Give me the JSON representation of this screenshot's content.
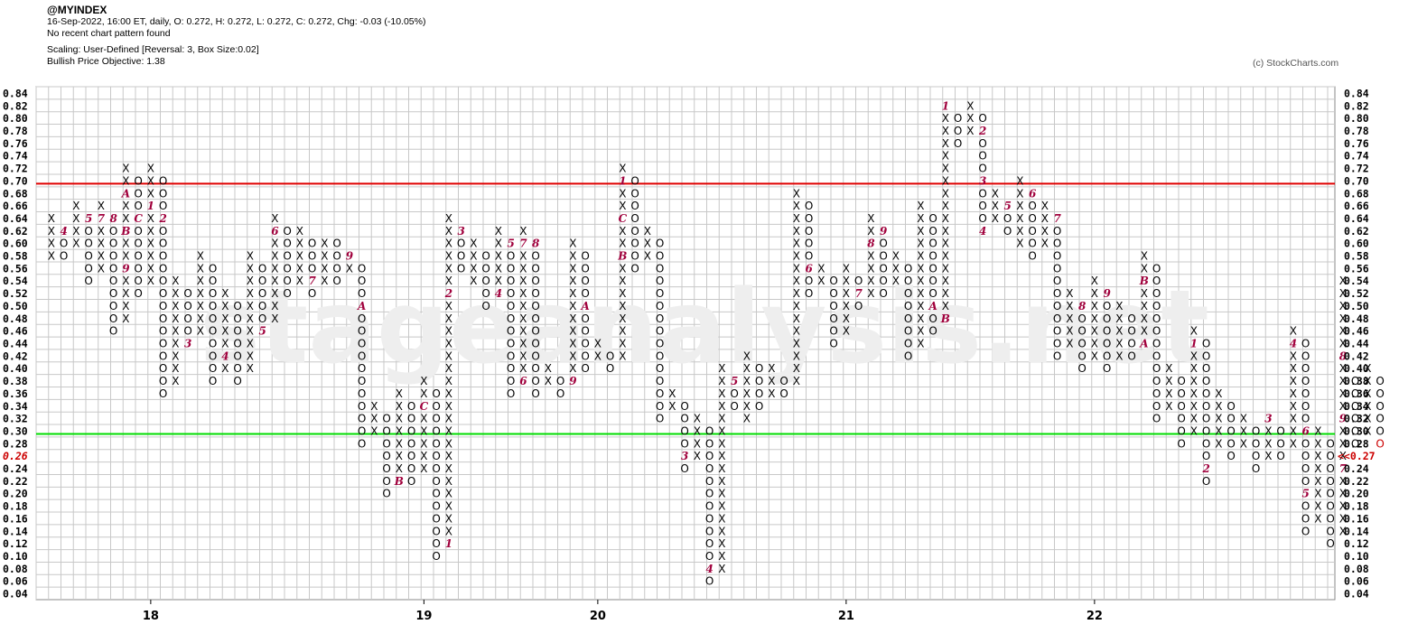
{
  "header": {
    "symbol": "@MYINDEX",
    "quote": "16-Sep-2022, 16:00 ET, daily, O: 0.272, H: 0.272, L: 0.272, C: 0.272, Chg: -0.03 (-10.05%)",
    "pattern": "No recent chart pattern found",
    "scaling": "Scaling: User-Defined [Reversal: 3, Box Size:0.02]",
    "objective": "Bullish Price Objective: 1.38"
  },
  "credit": "(c) StockCharts.com",
  "watermark": "stageanalysis.net",
  "colors": {
    "x": "#000000",
    "o": "#000000",
    "month": "#a0003c",
    "resistance": "#e00000",
    "support": "#00dd00",
    "grid": "#c8c8c8",
    "last": "#cc0000"
  },
  "chart_data": {
    "type": "point-and-figure",
    "box_size": 0.02,
    "reversal": 3,
    "ylim": [
      0.04,
      0.84
    ],
    "y_ticks": [
      "0.84",
      "0.82",
      "0.80",
      "0.78",
      "0.76",
      "0.74",
      "0.72",
      "0.70",
      "0.68",
      "0.66",
      "0.64",
      "0.62",
      "0.60",
      "0.58",
      "0.56",
      "0.54",
      "0.52",
      "0.50",
      "0.48",
      "0.46",
      "0.44",
      "0.42",
      "0.40",
      "0.38",
      "0.36",
      "0.34",
      "0.32",
      "0.30",
      "0.28",
      "0.26",
      "0.24",
      "0.22",
      "0.20",
      "0.18",
      "0.16",
      "0.14",
      "0.12",
      "0.10",
      "0.08",
      "0.06",
      "0.04"
    ],
    "left_marker": "0.26",
    "right_marker": "<<0.27",
    "resistance_line": 0.695,
    "support_line": 0.295,
    "year_labels": [
      {
        "label": "18",
        "col": 8
      },
      {
        "label": "19",
        "col": 30
      },
      {
        "label": "20",
        "col": 44
      },
      {
        "label": "21",
        "col": 64
      },
      {
        "label": "22",
        "col": 84
      }
    ],
    "columns": [
      {
        "t": "X",
        "lo": 0.58,
        "hi": 0.64
      },
      {
        "t": "O",
        "lo": 0.58,
        "hi": 0.62,
        "m": [
          [
            0.62,
            "4"
          ]
        ]
      },
      {
        "t": "X",
        "lo": 0.6,
        "hi": 0.66
      },
      {
        "t": "O",
        "lo": 0.54,
        "hi": 0.64,
        "m": [
          [
            0.64,
            "5"
          ]
        ]
      },
      {
        "t": "X",
        "lo": 0.56,
        "hi": 0.66,
        "m": [
          [
            0.64,
            "7"
          ]
        ]
      },
      {
        "t": "O",
        "lo": 0.46,
        "hi": 0.64,
        "m": [
          [
            0.64,
            "8"
          ]
        ]
      },
      {
        "t": "X",
        "lo": 0.48,
        "hi": 0.72,
        "m": [
          [
            0.56,
            "9"
          ],
          [
            0.62,
            "B"
          ],
          [
            0.68,
            "A"
          ]
        ]
      },
      {
        "t": "O",
        "lo": 0.52,
        "hi": 0.7,
        "m": [
          [
            0.64,
            "C"
          ]
        ]
      },
      {
        "t": "X",
        "lo": 0.54,
        "hi": 0.72,
        "m": [
          [
            0.66,
            "1"
          ]
        ]
      },
      {
        "t": "O",
        "lo": 0.36,
        "hi": 0.7,
        "m": [
          [
            0.64,
            "2"
          ]
        ]
      },
      {
        "t": "X",
        "lo": 0.38,
        "hi": 0.54
      },
      {
        "t": "O",
        "lo": 0.44,
        "hi": 0.52,
        "m": [
          [
            0.44,
            "3"
          ]
        ]
      },
      {
        "t": "X",
        "lo": 0.46,
        "hi": 0.58
      },
      {
        "t": "O",
        "lo": 0.38,
        "hi": 0.56
      },
      {
        "t": "X",
        "lo": 0.4,
        "hi": 0.52,
        "m": [
          [
            0.42,
            "4"
          ]
        ]
      },
      {
        "t": "O",
        "lo": 0.38,
        "hi": 0.5
      },
      {
        "t": "X",
        "lo": 0.4,
        "hi": 0.58
      },
      {
        "t": "O",
        "lo": 0.46,
        "hi": 0.56,
        "m": [
          [
            0.46,
            "5"
          ]
        ]
      },
      {
        "t": "X",
        "lo": 0.48,
        "hi": 0.64,
        "m": [
          [
            0.62,
            "6"
          ]
        ]
      },
      {
        "t": "O",
        "lo": 0.52,
        "hi": 0.62
      },
      {
        "t": "X",
        "lo": 0.54,
        "hi": 0.62
      },
      {
        "t": "O",
        "lo": 0.52,
        "hi": 0.6,
        "m": [
          [
            0.54,
            "7"
          ]
        ]
      },
      {
        "t": "X",
        "lo": 0.54,
        "hi": 0.6,
        "m": [
          [
            0.52,
            "8"
          ]
        ]
      },
      {
        "t": "O",
        "lo": 0.54,
        "hi": 0.6
      },
      {
        "t": "X",
        "lo": 0.56,
        "hi": 0.58,
        "m": [
          [
            0.58,
            "9"
          ]
        ]
      },
      {
        "t": "O",
        "lo": 0.28,
        "hi": 0.56,
        "m": [
          [
            0.5,
            "A"
          ]
        ]
      },
      {
        "t": "X",
        "lo": 0.3,
        "hi": 0.34
      },
      {
        "t": "O",
        "lo": 0.2,
        "hi": 0.32
      },
      {
        "t": "X",
        "lo": 0.22,
        "hi": 0.36,
        "m": [
          [
            0.22,
            "B"
          ]
        ]
      },
      {
        "t": "O",
        "lo": 0.22,
        "hi": 0.34
      },
      {
        "t": "X",
        "lo": 0.24,
        "hi": 0.38,
        "m": [
          [
            0.34,
            "C"
          ]
        ]
      },
      {
        "t": "O",
        "lo": 0.1,
        "hi": 0.36
      },
      {
        "t": "X",
        "lo": 0.12,
        "hi": 0.64,
        "m": [
          [
            0.12,
            "1"
          ],
          [
            0.52,
            "2"
          ]
        ]
      },
      {
        "t": "O",
        "lo": 0.56,
        "hi": 0.62,
        "m": [
          [
            0.62,
            "3"
          ]
        ]
      },
      {
        "t": "X",
        "lo": 0.54,
        "hi": 0.6
      },
      {
        "t": "O",
        "lo": 0.5,
        "hi": 0.58
      },
      {
        "t": "X",
        "lo": 0.52,
        "hi": 0.62,
        "m": [
          [
            0.52,
            "4"
          ]
        ]
      },
      {
        "t": "O",
        "lo": 0.36,
        "hi": 0.6,
        "m": [
          [
            0.6,
            "5"
          ]
        ]
      },
      {
        "t": "X",
        "lo": 0.38,
        "hi": 0.62,
        "m": [
          [
            0.38,
            "6"
          ],
          [
            0.6,
            "7"
          ]
        ]
      },
      {
        "t": "O",
        "lo": 0.36,
        "hi": 0.6,
        "m": [
          [
            0.6,
            "8"
          ]
        ]
      },
      {
        "t": "X",
        "lo": 0.38,
        "hi": 0.4
      },
      {
        "t": "O",
        "lo": 0.36,
        "hi": 0.38
      },
      {
        "t": "X",
        "lo": 0.38,
        "hi": 0.6,
        "m": [
          [
            0.38,
            "9"
          ]
        ]
      },
      {
        "t": "O",
        "lo": 0.4,
        "hi": 0.58,
        "m": [
          [
            0.5,
            "A"
          ]
        ]
      },
      {
        "t": "X",
        "lo": 0.42,
        "hi": 0.44
      },
      {
        "t": "O",
        "lo": 0.4,
        "hi": 0.42
      },
      {
        "t": "X",
        "lo": 0.42,
        "hi": 0.72,
        "m": [
          [
            0.58,
            "B"
          ],
          [
            0.64,
            "C"
          ],
          [
            0.7,
            "1"
          ]
        ]
      },
      {
        "t": "O",
        "lo": 0.56,
        "hi": 0.7
      },
      {
        "t": "X",
        "lo": 0.58,
        "hi": 0.62,
        "m": [
          [
            0.56,
            "2"
          ]
        ]
      },
      {
        "t": "O",
        "lo": 0.32,
        "hi": 0.6
      },
      {
        "t": "X",
        "lo": 0.34,
        "hi": 0.36
      },
      {
        "t": "O",
        "lo": 0.24,
        "hi": 0.34,
        "m": [
          [
            0.26,
            "3"
          ]
        ]
      },
      {
        "t": "X",
        "lo": 0.26,
        "hi": 0.32
      },
      {
        "t": "O",
        "lo": 0.06,
        "hi": 0.3,
        "m": [
          [
            0.08,
            "4"
          ]
        ]
      },
      {
        "t": "X",
        "lo": 0.08,
        "hi": 0.4
      },
      {
        "t": "O",
        "lo": 0.34,
        "hi": 0.38,
        "m": [
          [
            0.38,
            "5"
          ]
        ]
      },
      {
        "t": "X",
        "lo": 0.32,
        "hi": 0.42
      },
      {
        "t": "O",
        "lo": 0.34,
        "hi": 0.4
      },
      {
        "t": "X",
        "lo": 0.36,
        "hi": 0.4
      },
      {
        "t": "O",
        "lo": 0.36,
        "hi": 0.38
      },
      {
        "t": "X",
        "lo": 0.38,
        "hi": 0.68
      },
      {
        "t": "O",
        "lo": 0.52,
        "hi": 0.66,
        "m": [
          [
            0.56,
            "6"
          ]
        ]
      },
      {
        "t": "X",
        "lo": 0.54,
        "hi": 0.56
      },
      {
        "t": "O",
        "lo": 0.44,
        "hi": 0.54
      },
      {
        "t": "X",
        "lo": 0.46,
        "hi": 0.56
      },
      {
        "t": "O",
        "lo": 0.5,
        "hi": 0.54,
        "m": [
          [
            0.52,
            "7"
          ]
        ]
      },
      {
        "t": "X",
        "lo": 0.52,
        "hi": 0.64,
        "m": [
          [
            0.6,
            "8"
          ]
        ]
      },
      {
        "t": "O",
        "lo": 0.52,
        "hi": 0.62,
        "m": [
          [
            0.62,
            "9"
          ]
        ]
      },
      {
        "t": "X",
        "lo": 0.54,
        "hi": 0.58
      },
      {
        "t": "O",
        "lo": 0.42,
        "hi": 0.56
      },
      {
        "t": "X",
        "lo": 0.44,
        "hi": 0.66
      },
      {
        "t": "O",
        "lo": 0.46,
        "hi": 0.64,
        "m": [
          [
            0.5,
            "A"
          ]
        ]
      },
      {
        "t": "X",
        "lo": 0.48,
        "hi": 0.82,
        "m": [
          [
            0.48,
            "B"
          ],
          [
            0.82,
            "1"
          ]
        ]
      },
      {
        "t": "O",
        "lo": 0.76,
        "hi": 0.8
      },
      {
        "t": "X",
        "lo": 0.78,
        "hi": 0.82
      },
      {
        "t": "O",
        "lo": 0.62,
        "hi": 0.8,
        "m": [
          [
            0.78,
            "2"
          ],
          [
            0.7,
            "3"
          ],
          [
            0.62,
            "4"
          ]
        ]
      },
      {
        "t": "X",
        "lo": 0.64,
        "hi": 0.68
      },
      {
        "t": "O",
        "lo": 0.62,
        "hi": 0.66,
        "m": [
          [
            0.66,
            "5"
          ]
        ]
      },
      {
        "t": "X",
        "lo": 0.6,
        "hi": 0.7
      },
      {
        "t": "O",
        "lo": 0.58,
        "hi": 0.68,
        "m": [
          [
            0.68,
            "6"
          ]
        ]
      },
      {
        "t": "X",
        "lo": 0.6,
        "hi": 0.66
      },
      {
        "t": "O",
        "lo": 0.42,
        "hi": 0.64,
        "m": [
          [
            0.64,
            "7"
          ]
        ]
      },
      {
        "t": "X",
        "lo": 0.44,
        "hi": 0.52
      },
      {
        "t": "O",
        "lo": 0.4,
        "hi": 0.5,
        "m": [
          [
            0.5,
            "8"
          ]
        ]
      },
      {
        "t": "X",
        "lo": 0.42,
        "hi": 0.54
      },
      {
        "t": "O",
        "lo": 0.4,
        "hi": 0.52,
        "m": [
          [
            0.52,
            "9"
          ]
        ]
      },
      {
        "t": "X",
        "lo": 0.42,
        "hi": 0.5
      },
      {
        "t": "O",
        "lo": 0.42,
        "hi": 0.48
      },
      {
        "t": "X",
        "lo": 0.44,
        "hi": 0.58,
        "m": [
          [
            0.44,
            "A"
          ],
          [
            0.54,
            "B"
          ]
        ]
      },
      {
        "t": "O",
        "lo": 0.32,
        "hi": 0.56,
        "m": [
          [
            0.3,
            "C"
          ]
        ]
      },
      {
        "t": "X",
        "lo": 0.34,
        "hi": 0.4
      },
      {
        "t": "O",
        "lo": 0.28,
        "hi": 0.38
      },
      {
        "t": "X",
        "lo": 0.3,
        "hi": 0.46,
        "m": [
          [
            0.44,
            "1"
          ]
        ]
      },
      {
        "t": "O",
        "lo": 0.22,
        "hi": 0.44,
        "m": [
          [
            0.24,
            "2"
          ]
        ]
      },
      {
        "t": "X",
        "lo": 0.28,
        "hi": 0.36
      },
      {
        "t": "O",
        "lo": 0.26,
        "hi": 0.34
      },
      {
        "t": "X",
        "lo": 0.28,
        "hi": 0.32
      },
      {
        "t": "O",
        "lo": 0.24,
        "hi": 0.3
      },
      {
        "t": "X",
        "lo": 0.26,
        "hi": 0.32,
        "m": [
          [
            0.32,
            "3"
          ]
        ]
      },
      {
        "t": "O",
        "lo": 0.26,
        "hi": 0.3
      },
      {
        "t": "X",
        "lo": 0.28,
        "hi": 0.46,
        "m": [
          [
            0.44,
            "4"
          ]
        ]
      },
      {
        "t": "O",
        "lo": 0.14,
        "hi": 0.44,
        "m": [
          [
            0.2,
            "5"
          ],
          [
            0.3,
            "6"
          ]
        ]
      },
      {
        "t": "X",
        "lo": 0.16,
        "hi": 0.3
      },
      {
        "t": "O",
        "lo": 0.12,
        "hi": 0.28
      },
      {
        "t": "X",
        "lo": 0.14,
        "hi": 0.54,
        "m": [
          [
            0.24,
            "7"
          ],
          [
            0.42,
            "8"
          ],
          [
            0.32,
            "9"
          ]
        ]
      },
      {
        "t": "O",
        "lo": 0.28,
        "hi": 0.38
      },
      {
        "t": "X",
        "lo": 0.3,
        "hi": 0.4
      },
      {
        "t": "O",
        "lo": 0.28,
        "hi": 0.38,
        "last": true
      }
    ]
  }
}
